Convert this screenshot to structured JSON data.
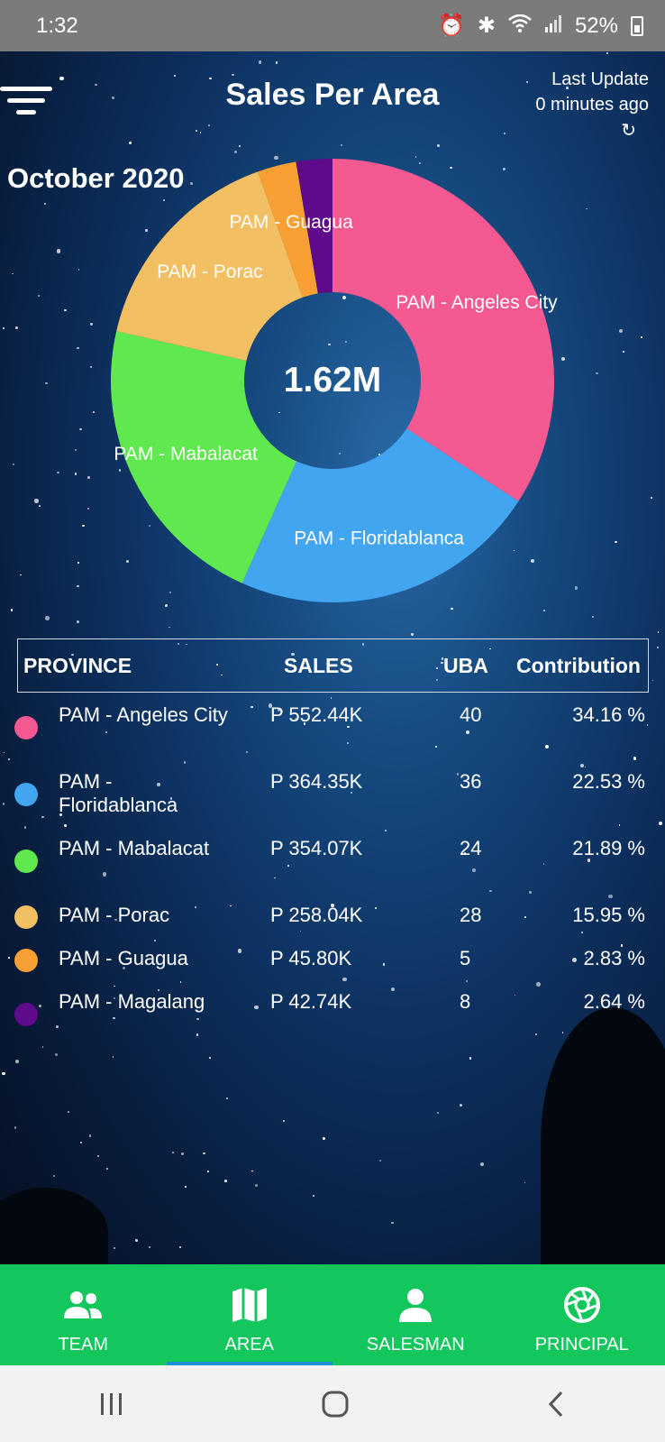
{
  "status_bar": {
    "time": "1:32",
    "battery": "52%"
  },
  "header": {
    "title": "Sales Per Area",
    "last_update_label": "Last Update",
    "last_update_value": "0 minutes ago",
    "month": "October 2020"
  },
  "chart_data": {
    "type": "pie",
    "center_label": "1.62M",
    "categories": [
      "PAM - Angeles City",
      "PAM - Floridablanca",
      "PAM - Mabalacat",
      "PAM - Porac",
      "PAM - Guagua",
      "PAM - Magalang"
    ],
    "values": [
      34.16,
      22.53,
      21.89,
      15.95,
      2.83,
      2.64
    ],
    "colors": [
      "#f45992",
      "#42a5ef",
      "#60e84f",
      "#f2c063",
      "#f8a033",
      "#5e0a8a"
    ],
    "slice_labels": [
      "PAM - Angeles City",
      "PAM - Floridablanca",
      "PAM - Mabalacat",
      "PAM - Porac",
      "PAM - Guagua",
      ""
    ]
  },
  "table": {
    "headers": {
      "province": "PROVINCE",
      "sales": "SALES",
      "uba": "UBA",
      "contribution": "Contribution"
    },
    "rows": [
      {
        "province": "PAM - Angeles City",
        "sales": "P 552.44K",
        "uba": "40",
        "contribution": "34.16 %",
        "color": "#f45992"
      },
      {
        "province": "PAM - Floridablanca",
        "sales": "P 364.35K",
        "uba": "36",
        "contribution": "22.53 %",
        "color": "#42a5ef"
      },
      {
        "province": "PAM - Mabalacat",
        "sales": "P 354.07K",
        "uba": "24",
        "contribution": "21.89 %",
        "color": "#60e84f"
      },
      {
        "province": "PAM - Porac",
        "sales": "P 258.04K",
        "uba": "28",
        "contribution": "15.95 %",
        "color": "#f2c063"
      },
      {
        "province": "PAM - Guagua",
        "sales": "P 45.80K",
        "uba": "5",
        "contribution": "2.83 %",
        "color": "#f8a033"
      },
      {
        "province": "PAM - Magalang",
        "sales": "P 42.74K",
        "uba": "8",
        "contribution": "2.64 %",
        "color": "#5e0a8a"
      }
    ]
  },
  "bottom_nav": {
    "items": [
      {
        "label": "TEAM",
        "icon": "team-icon"
      },
      {
        "label": "AREA",
        "icon": "map-icon"
      },
      {
        "label": "SALESMAN",
        "icon": "person-icon"
      },
      {
        "label": "PRINCIPAL",
        "icon": "aperture-icon"
      }
    ],
    "active": "AREA",
    "color": "#13c75d"
  }
}
